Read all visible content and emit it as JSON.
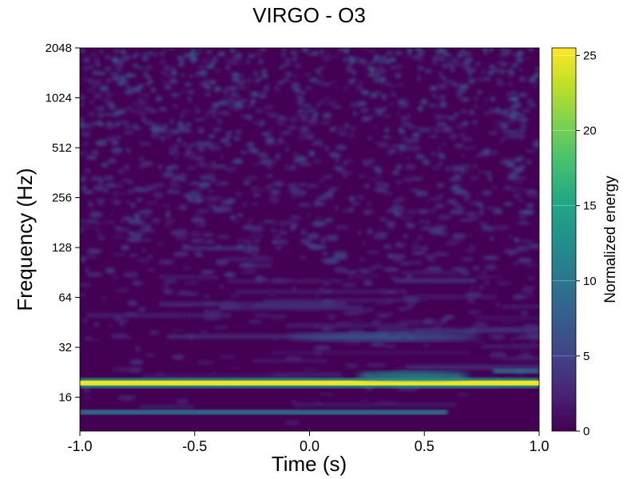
{
  "chart_data": {
    "type": "heatmap",
    "title": "VIRGO - O3",
    "xlabel": "Time (s)",
    "ylabel": "Frequency (Hz)",
    "xlim": [
      -1.0,
      1.0
    ],
    "ylim": [
      10,
      2048
    ],
    "yscale": "log2",
    "xticks": [
      -1.0,
      -0.5,
      0.0,
      0.5,
      1.0
    ],
    "xtick_labels": [
      "-1.0",
      "-0.5",
      "0.0",
      "0.5",
      "1.0"
    ],
    "yticks": [
      16,
      32,
      64,
      128,
      256,
      512,
      1024,
      2048
    ],
    "ytick_labels": [
      "16",
      "32",
      "64",
      "128",
      "256",
      "512",
      "1024",
      "2048"
    ],
    "grid": false,
    "colormap": "viridis",
    "colorbar": {
      "label": "Normalized energy",
      "range": [
        0,
        25.5
      ],
      "ticks": [
        0,
        5,
        10,
        15,
        20,
        25
      ],
      "tick_labels": [
        "0",
        "5",
        "10",
        "15",
        "20",
        "25"
      ]
    },
    "features": [
      {
        "type": "line",
        "frequency": 19.5,
        "t_start": -1.0,
        "t_end": 1.0,
        "energy": 25
      },
      {
        "type": "line",
        "frequency": 13,
        "t_start": -1.0,
        "t_end": 0.6,
        "energy": 11
      },
      {
        "type": "arc",
        "frequency": 37,
        "t_start": -0.1,
        "t_end": 0.75,
        "energy": 7
      },
      {
        "type": "arc",
        "frequency": 21.5,
        "t_start": 0.2,
        "t_end": 0.7,
        "energy": 13
      },
      {
        "type": "line",
        "frequency": 23,
        "t_start": 0.8,
        "t_end": 1.0,
        "energy": 9
      }
    ]
  },
  "colors": {
    "viridis_low": "#440154",
    "viridis_mid": "#21918c",
    "viridis_high": "#fde725"
  }
}
